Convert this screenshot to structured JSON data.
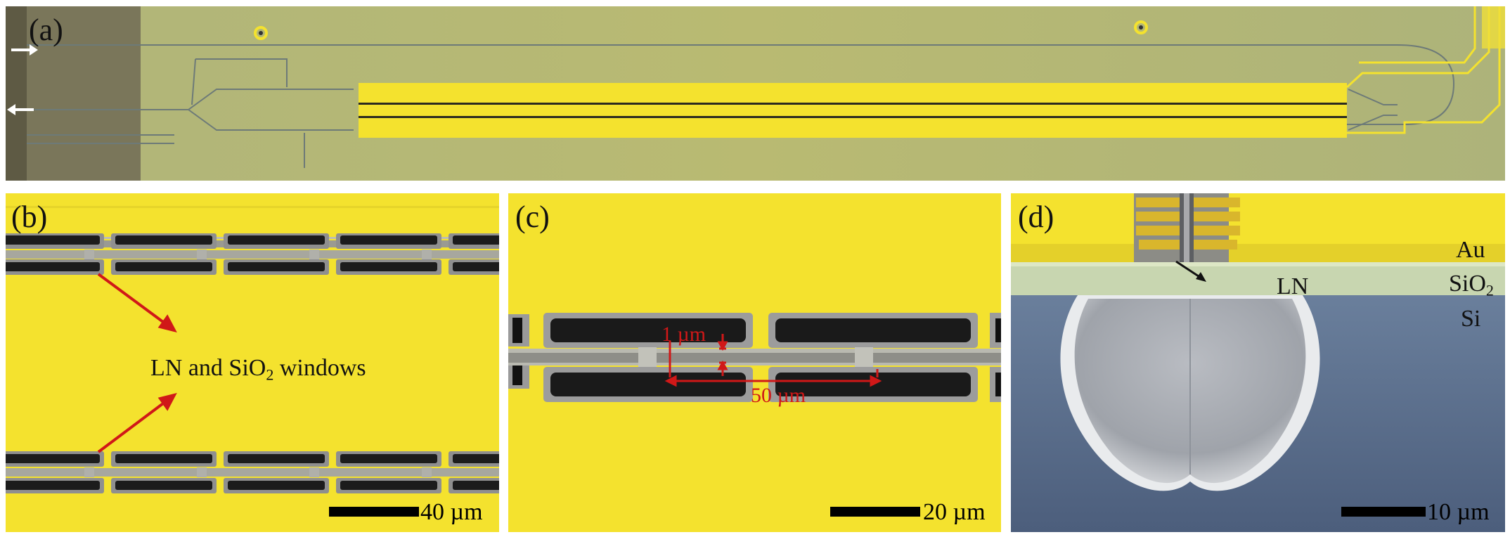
{
  "panels": {
    "a": {
      "label": "(a)"
    },
    "b": {
      "label": "(b)",
      "annotation_pre": "LN and SiO",
      "annotation_sub": "2",
      "annotation_post": " windows",
      "scale": "40 µm"
    },
    "c": {
      "label": "(c)",
      "dim_gap": "1 µm",
      "dim_period": "50 µm",
      "scale": "20 µm"
    },
    "d": {
      "label": "(d)",
      "layer_au": "Au",
      "layer_sio2_pre": "SiO",
      "layer_sio2_sub": "2",
      "layer_ln": "LN",
      "layer_si": "Si",
      "scale": "10 µm"
    }
  },
  "colors": {
    "gold": "#f4e22e",
    "gray_window": "#8a8a8a",
    "dark_window": "#1c1c1c",
    "chip_green": "#b4b774",
    "annotation_red": "#d01818",
    "substrate_blue": "#5b6e8c"
  }
}
